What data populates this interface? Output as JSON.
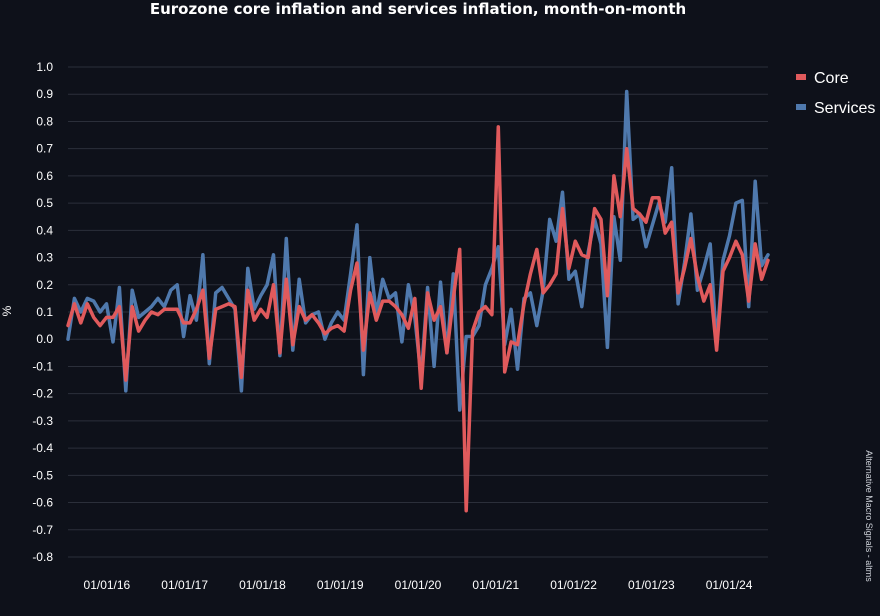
{
  "chart_data": {
    "type": "line",
    "title": "Eurozone core inflation and services inflation, month-on-month",
    "xlabel": "",
    "ylabel": "%",
    "ylim": [
      -0.8,
      1.0
    ],
    "y_ticks": [
      1.0,
      0.9,
      0.8,
      0.7,
      0.6,
      0.5,
      0.4,
      0.3,
      0.2,
      0.1,
      0.0,
      -0.1,
      -0.2,
      -0.3,
      -0.4,
      -0.5,
      -0.6,
      -0.7,
      -0.8
    ],
    "y_tick_labels": [
      "1.0",
      "0.9",
      "0.8",
      "0.7",
      "0.6",
      "0.5",
      "0.4",
      "0.3",
      "0.2",
      "0.1",
      "0.0",
      "-0.1",
      "-0.2",
      "-0.3",
      "-0.4",
      "-0.5",
      "-0.6",
      "-0.7",
      "-0.8"
    ],
    "x_start": "2015-07",
    "x_end": "2024-07",
    "x_ticks": [
      "2016-01",
      "2017-01",
      "2018-01",
      "2019-01",
      "2020-01",
      "2021-01",
      "2022-01",
      "2023-01",
      "2024-01"
    ],
    "x_tick_labels": [
      "01/01/16",
      "01/01/17",
      "01/01/18",
      "01/01/19",
      "01/01/20",
      "01/01/21",
      "01/01/22",
      "01/01/23",
      "01/01/24"
    ],
    "grid": true,
    "legend_position": "top-right",
    "series": [
      {
        "name": "Core",
        "color": "#e05a5c",
        "values": [
          0.05,
          0.13,
          0.06,
          0.13,
          0.08,
          0.05,
          0.08,
          0.08,
          0.12,
          -0.15,
          0.12,
          0.03,
          0.07,
          0.1,
          0.09,
          0.11,
          0.11,
          0.11,
          0.06,
          0.06,
          0.11,
          0.18,
          -0.07,
          0.11,
          0.12,
          0.13,
          0.12,
          -0.14,
          0.18,
          0.07,
          0.11,
          0.08,
          0.2,
          -0.05,
          0.22,
          -0.02,
          0.12,
          0.07,
          0.09,
          0.06,
          0.02,
          0.04,
          0.05,
          0.03,
          0.18,
          0.28,
          -0.04,
          0.17,
          0.07,
          0.14,
          0.14,
          0.12,
          0.09,
          0.04,
          0.15,
          -0.18,
          0.17,
          0.07,
          0.12,
          -0.05,
          0.15,
          0.33,
          -0.63,
          0.03,
          0.1,
          0.12,
          0.09,
          0.78,
          -0.12,
          -0.01,
          -0.02,
          0.13,
          0.24,
          0.33,
          0.17,
          0.2,
          0.24,
          0.48,
          0.26,
          0.36,
          0.31,
          0.3,
          0.48,
          0.44,
          0.16,
          0.6,
          0.45,
          0.7,
          0.48,
          0.46,
          0.43,
          0.52,
          0.52,
          0.39,
          0.43,
          0.17,
          0.26,
          0.37,
          0.23,
          0.14,
          0.2,
          -0.04,
          0.25,
          0.3,
          0.36,
          0.31,
          0.14,
          0.35,
          0.22,
          0.29
        ]
      },
      {
        "name": "Services",
        "color": "#4f79ad",
        "values": [
          0.0,
          0.15,
          0.1,
          0.15,
          0.14,
          0.1,
          0.13,
          -0.01,
          0.19,
          -0.19,
          0.18,
          0.08,
          0.1,
          0.12,
          0.15,
          0.12,
          0.18,
          0.2,
          0.01,
          0.16,
          0.07,
          0.31,
          -0.09,
          0.17,
          0.19,
          0.15,
          0.11,
          -0.19,
          0.26,
          0.11,
          0.16,
          0.2,
          0.31,
          -0.06,
          0.37,
          -0.04,
          0.22,
          0.06,
          0.09,
          0.1,
          0.0,
          0.06,
          0.1,
          0.07,
          0.24,
          0.42,
          -0.13,
          0.3,
          0.09,
          0.22,
          0.15,
          0.17,
          -0.01,
          0.2,
          0.08,
          -0.14,
          0.19,
          -0.1,
          0.21,
          -0.05,
          0.24,
          -0.26,
          0.01,
          0.01,
          0.05,
          0.2,
          0.26,
          0.34,
          -0.02,
          0.11,
          -0.11,
          0.15,
          0.17,
          0.05,
          0.18,
          0.44,
          0.36,
          0.54,
          0.22,
          0.25,
          0.12,
          0.32,
          0.44,
          0.35,
          -0.03,
          0.45,
          0.29,
          0.91,
          0.44,
          0.46,
          0.34,
          0.42,
          0.5,
          0.43,
          0.63,
          0.13,
          0.28,
          0.46,
          0.18,
          0.26,
          0.35,
          -0.02,
          0.29,
          0.38,
          0.5,
          0.51,
          0.12,
          0.58,
          0.27,
          0.31
        ]
      }
    ],
    "source_note": "Alternative Macro Signals - altms"
  }
}
